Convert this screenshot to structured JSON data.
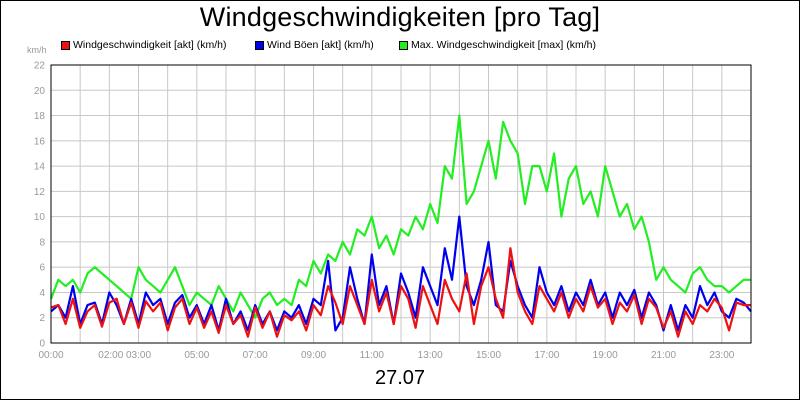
{
  "chart_data": {
    "type": "line",
    "title": "Windgeschwindigkeiten [pro Tag]",
    "ylabel": "km/h",
    "xlabel": "27.07",
    "ylim": [
      0,
      22
    ],
    "yticks": [
      0,
      2,
      4,
      6,
      8,
      10,
      12,
      14,
      16,
      18,
      20,
      22
    ],
    "xlim": [
      0,
      24
    ],
    "xticks": [
      {
        "x": 0,
        "label": "00:00"
      },
      {
        "x": 2.05,
        "label": "02:00"
      },
      {
        "x": 3,
        "label": "03:00"
      },
      {
        "x": 5,
        "label": "05:00"
      },
      {
        "x": 7,
        "label": "07:00"
      },
      {
        "x": 9,
        "label": "09:00"
      },
      {
        "x": 11,
        "label": "11:00"
      },
      {
        "x": 13,
        "label": "13:00"
      },
      {
        "x": 15,
        "label": "15:00"
      },
      {
        "x": 17,
        "label": "17:00"
      },
      {
        "x": 19,
        "label": "19:00"
      },
      {
        "x": 21,
        "label": "21:00"
      },
      {
        "x": 23,
        "label": "23:00"
      }
    ],
    "grid": true,
    "legend_position": "top",
    "series": [
      {
        "name": "Windgeschwindigkeit [akt] (km/h)",
        "color": "#ee1111",
        "x": [
          0,
          0.25,
          0.5,
          0.75,
          1,
          1.25,
          1.5,
          1.75,
          2,
          2.25,
          2.5,
          2.75,
          3,
          3.25,
          3.5,
          3.75,
          4,
          4.25,
          4.5,
          4.75,
          5,
          5.25,
          5.5,
          5.75,
          6,
          6.25,
          6.5,
          6.75,
          7,
          7.25,
          7.5,
          7.75,
          8,
          8.25,
          8.5,
          8.75,
          9,
          9.25,
          9.5,
          9.75,
          10,
          10.25,
          10.5,
          10.75,
          11,
          11.25,
          11.5,
          11.75,
          12,
          12.25,
          12.5,
          12.75,
          13,
          13.25,
          13.5,
          13.75,
          14,
          14.25,
          14.5,
          14.75,
          15,
          15.25,
          15.5,
          15.75,
          16,
          16.25,
          16.5,
          16.75,
          17,
          17.25,
          17.5,
          17.75,
          18,
          18.25,
          18.5,
          18.75,
          19,
          19.25,
          19.5,
          19.75,
          20,
          20.25,
          20.5,
          20.75,
          21,
          21.25,
          21.5,
          21.75,
          22,
          22.25,
          22.5,
          22.75,
          23,
          23.25,
          23.5,
          23.75,
          24
        ],
        "values": [
          2.8,
          3,
          1.5,
          3.5,
          1.2,
          2.5,
          3,
          1.3,
          3.2,
          3.5,
          1.5,
          3.2,
          1.2,
          3.3,
          2.5,
          3.2,
          1,
          2.8,
          3.5,
          1.5,
          2.8,
          1.2,
          2.5,
          0.8,
          3,
          1.5,
          2.2,
          0.5,
          2.8,
          1.2,
          2.5,
          0.5,
          2.2,
          1.8,
          2.5,
          1,
          3,
          2.2,
          4.5,
          3.2,
          1.5,
          4.5,
          3,
          1.5,
          5,
          2.5,
          4,
          1.5,
          4.5,
          3.5,
          1.2,
          4.5,
          3,
          1.5,
          5,
          3.5,
          2.5,
          5.5,
          1.5,
          4.5,
          6,
          3.5,
          2,
          7.5,
          4,
          2.5,
          1.5,
          4.5,
          3.5,
          2.5,
          4,
          2,
          3.5,
          2.5,
          4.5,
          2.8,
          3.5,
          1.5,
          3.2,
          2.5,
          3.8,
          1.5,
          3.5,
          2.8,
          1.2,
          2.5,
          0.5,
          2.5,
          1.5,
          3,
          2.5,
          3.5,
          2.8,
          1,
          3.2,
          3,
          3
        ]
      },
      {
        "name": "Wind Böen [akt] (km/h)",
        "color": "#0000ee",
        "x": [
          0,
          0.25,
          0.5,
          0.75,
          1,
          1.25,
          1.5,
          1.75,
          2,
          2.25,
          2.5,
          2.75,
          3,
          3.25,
          3.5,
          3.75,
          4,
          4.25,
          4.5,
          4.75,
          5,
          5.25,
          5.5,
          5.75,
          6,
          6.25,
          6.5,
          6.75,
          7,
          7.25,
          7.5,
          7.75,
          8,
          8.25,
          8.5,
          8.75,
          9,
          9.25,
          9.5,
          9.75,
          10,
          10.25,
          10.5,
          10.75,
          11,
          11.25,
          11.5,
          11.75,
          12,
          12.25,
          12.5,
          12.75,
          13,
          13.25,
          13.5,
          13.75,
          14,
          14.25,
          14.5,
          14.75,
          15,
          15.25,
          15.5,
          15.75,
          16,
          16.25,
          16.5,
          16.75,
          17,
          17.25,
          17.5,
          17.75,
          18,
          18.25,
          18.5,
          18.75,
          19,
          19.25,
          19.5,
          19.75,
          20,
          20.25,
          20.5,
          20.75,
          21,
          21.25,
          21.5,
          21.75,
          22,
          22.25,
          22.5,
          22.75,
          23,
          23.25,
          23.5,
          23.75,
          24
        ],
        "values": [
          2.5,
          3,
          2,
          4.5,
          1.5,
          3,
          3.2,
          1.5,
          4,
          3,
          1.5,
          3.5,
          1.5,
          4,
          3,
          3.5,
          1.5,
          3.2,
          3.8,
          2,
          3,
          1.5,
          3,
          1,
          3.5,
          1.5,
          2.5,
          1,
          3,
          1.5,
          2.5,
          1,
          2.5,
          2,
          3,
          1.5,
          3.5,
          3,
          6.5,
          1,
          2,
          6,
          3.5,
          1.5,
          7,
          3,
          4.5,
          1.5,
          5.5,
          4,
          2,
          6,
          4.5,
          3,
          7.5,
          5,
          10,
          4.5,
          3,
          5,
          8,
          3,
          2.5,
          6.5,
          4.5,
          3,
          2,
          6,
          4,
          3,
          4.5,
          2.5,
          4,
          3,
          5,
          3,
          4,
          2,
          4,
          3,
          4.2,
          2,
          4,
          3,
          1,
          3,
          1,
          3,
          2,
          4.5,
          3,
          4,
          2.5,
          2,
          3.5,
          3.2,
          2.5
        ]
      },
      {
        "name": "Max. Windgeschwindigkeit [max] (km/h)",
        "color": "#22ee22",
        "x": [
          0,
          0.25,
          0.5,
          0.75,
          1,
          1.25,
          1.5,
          1.75,
          2,
          2.25,
          2.5,
          2.75,
          3,
          3.25,
          3.5,
          3.75,
          4,
          4.25,
          4.5,
          4.75,
          5,
          5.25,
          5.5,
          5.75,
          6,
          6.25,
          6.5,
          6.75,
          7,
          7.25,
          7.5,
          7.75,
          8,
          8.25,
          8.5,
          8.75,
          9,
          9.25,
          9.5,
          9.75,
          10,
          10.25,
          10.5,
          10.75,
          11,
          11.25,
          11.5,
          11.75,
          12,
          12.25,
          12.5,
          12.75,
          13,
          13.25,
          13.5,
          13.75,
          14,
          14.25,
          14.5,
          14.75,
          15,
          15.25,
          15.5,
          15.75,
          16,
          16.25,
          16.5,
          16.75,
          17,
          17.25,
          17.5,
          17.75,
          18,
          18.25,
          18.5,
          18.75,
          19,
          19.25,
          19.5,
          19.75,
          20,
          20.25,
          20.5,
          20.75,
          21,
          21.25,
          21.5,
          21.75,
          22,
          22.25,
          22.5,
          22.75,
          23,
          23.25,
          23.5,
          23.75,
          24
        ],
        "values": [
          3.5,
          5,
          4.5,
          5,
          4,
          5.5,
          6,
          5.5,
          5,
          4.5,
          4,
          3.5,
          6,
          5,
          4.5,
          4,
          5,
          6,
          4.5,
          3,
          4,
          3.5,
          3,
          4.5,
          3.5,
          2.5,
          4,
          3,
          2,
          3.5,
          4,
          3,
          3.5,
          3,
          5,
          4.5,
          6.5,
          5.5,
          7,
          6.5,
          8,
          7,
          9,
          8.5,
          10,
          7.5,
          8.5,
          7,
          9,
          8.5,
          10,
          9,
          11,
          9.5,
          14,
          13,
          18,
          11,
          12,
          14,
          16,
          13,
          17.5,
          16,
          15,
          11,
          14,
          14,
          12,
          15,
          10,
          13,
          14,
          11,
          12,
          10,
          14,
          12,
          10,
          11,
          9,
          10,
          8,
          5,
          6,
          5,
          4.5,
          4,
          5.5,
          6,
          5,
          4.5,
          4.5,
          4,
          4.5,
          5,
          5
        ]
      }
    ]
  }
}
